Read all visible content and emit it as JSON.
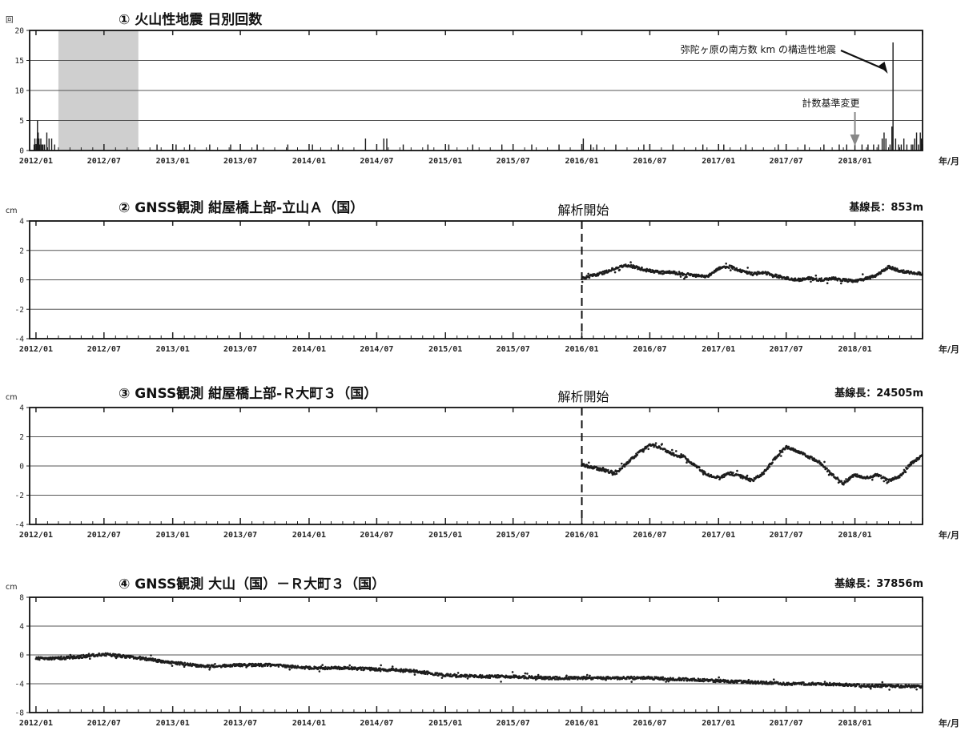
{
  "chart_data": [
    {
      "type": "bar",
      "title": "① 火山性地震 日別回数",
      "ylabel": "回",
      "xunit": "年/月",
      "ylim": [
        0,
        20
      ],
      "yticks": [
        0,
        5,
        10,
        15,
        20
      ],
      "grid": true,
      "x_tick_labels": [
        "2012/01",
        "2012/07",
        "2013/01",
        "2013/07",
        "2014/01",
        "2014/07",
        "2015/01",
        "2015/07",
        "2016/01",
        "2016/07",
        "2017/01",
        "2017/07",
        "2018/01"
      ],
      "shaded_period": {
        "from": "2012/03",
        "to": "2012/10",
        "color": "#cfcfcf"
      },
      "annotations": [
        {
          "text": "弥陀ヶ原の南方数 km の構造性地震",
          "date": "2018/04",
          "value": 14
        },
        {
          "text": "計数基準変更",
          "date": "2018/01",
          "value": 1
        }
      ],
      "series": [
        {
          "x": [
            "2011/12/27",
            "2011/12/29",
            "2012/01/02",
            "2012/01/04",
            "2012/01/05",
            "2012/01/07",
            "2012/01/09",
            "2012/01/11",
            "2012/01/14",
            "2012/01/17",
            "2012/01/20",
            "2012/01/24",
            "2012/01/30",
            "2012/02/05",
            "2012/02/12",
            "2012/02/20",
            "2012/11/20",
            "2013/01/10",
            "2013/02/15",
            "2013/04/10",
            "2013/06/05",
            "2013/08/15",
            "2013/11/05",
            "2014/01/10",
            "2014/03/20",
            "2014/06/01",
            "2014/07/20",
            "2014/07/28",
            "2014/09/10",
            "2014/11/15",
            "2015/01/10",
            "2015/03/15",
            "2015/06/01",
            "2015/08/20",
            "2015/11/01",
            "2016/01/05",
            "2016/01/25",
            "2016/02/10",
            "2016/04/01",
            "2016/06/15",
            "2016/09/01",
            "2016/11/20",
            "2017/01/15",
            "2017/03/15",
            "2017/06/10",
            "2017/08/20",
            "2017/10/10",
            "2017/11/20",
            "2017/12/10",
            "2018/01/20",
            "2018/02/05",
            "2018/02/20",
            "2018/03/05",
            "2018/03/15",
            "2018/03/20",
            "2018/03/25",
            "2018/04/05",
            "2018/04/10",
            "2018/04/13",
            "2018/04/20",
            "2018/04/28",
            "2018/05/05",
            "2018/05/12",
            "2018/05/20",
            "2018/06/01",
            "2018/06/05",
            "2018/06/10",
            "2018/06/15",
            "2018/06/20",
            "2018/06/25",
            "2018/06/28"
          ],
          "values": [
            1,
            2,
            1,
            2,
            5,
            3,
            2,
            1,
            2,
            1,
            1,
            1,
            3,
            2,
            2,
            1,
            1,
            1,
            1,
            1,
            1,
            1,
            1,
            1,
            1,
            2,
            2,
            2,
            1,
            1,
            1,
            1,
            1,
            1,
            1,
            2,
            1,
            1,
            1,
            1,
            1,
            1,
            1,
            1,
            1,
            1,
            1,
            1,
            1,
            1,
            1,
            1,
            1,
            2,
            3,
            2,
            1,
            4,
            18,
            2,
            1,
            1,
            2,
            1,
            1,
            1,
            2,
            3,
            1,
            3,
            2
          ]
        }
      ]
    },
    {
      "type": "scatter",
      "title": "② GNSS観測 紺屋橋上部-立山Ａ（国）",
      "baseline": "基線長：853m",
      "ylabel": "cm",
      "xunit": "年/月",
      "ylim": [
        -4,
        4
      ],
      "yticks": [
        -4,
        -2,
        0,
        2,
        4
      ],
      "grid": true,
      "analysis_start_label": "解析開始",
      "analysis_start": "2016/01",
      "x_tick_labels": [
        "2012/01",
        "2012/07",
        "2013/01",
        "2013/07",
        "2014/01",
        "2014/07",
        "2015/01",
        "2015/07",
        "2016/01",
        "2016/07",
        "2017/01",
        "2017/07",
        "2018/01"
      ],
      "series": [
        {
          "x": [
            "2016/01",
            "2016/02",
            "2016/03",
            "2016/04",
            "2016/05",
            "2016/06",
            "2016/07",
            "2016/08",
            "2016/09",
            "2016/10",
            "2016/11",
            "2016/12",
            "2017/01",
            "2017/02",
            "2017/03",
            "2017/04",
            "2017/05",
            "2017/06",
            "2017/07",
            "2017/08",
            "2017/09",
            "2017/10",
            "2017/11",
            "2017/12",
            "2018/01",
            "2018/02",
            "2018/03",
            "2018/04",
            "2018/05",
            "2018/06",
            "2018/07"
          ],
          "values": [
            0.1,
            0.3,
            0.5,
            0.8,
            1.0,
            0.8,
            0.6,
            0.5,
            0.5,
            0.4,
            0.3,
            0.2,
            0.8,
            0.9,
            0.6,
            0.4,
            0.5,
            0.3,
            0.1,
            0.0,
            0.1,
            0.0,
            0.1,
            0.0,
            -0.1,
            0.1,
            0.3,
            0.9,
            0.6,
            0.5,
            0.4
          ]
        }
      ]
    },
    {
      "type": "scatter",
      "title": "③ GNSS観測 紺屋橋上部-Ｒ大町３（国）",
      "baseline": "基線長：24505m",
      "ylabel": "cm",
      "xunit": "年/月",
      "ylim": [
        -4,
        4
      ],
      "yticks": [
        -4,
        -2,
        0,
        2,
        4
      ],
      "grid": true,
      "analysis_start_label": "解析開始",
      "analysis_start": "2016/01",
      "x_tick_labels": [
        "2012/01",
        "2012/07",
        "2013/01",
        "2013/07",
        "2014/01",
        "2014/07",
        "2015/01",
        "2015/07",
        "2016/01",
        "2016/07",
        "2017/01",
        "2017/07",
        "2018/01"
      ],
      "series": [
        {
          "x": [
            "2016/01",
            "2016/02",
            "2016/03",
            "2016/04",
            "2016/05",
            "2016/06",
            "2016/07",
            "2016/08",
            "2016/09",
            "2016/10",
            "2016/11",
            "2016/12",
            "2017/01",
            "2017/02",
            "2017/03",
            "2017/04",
            "2017/05",
            "2017/06",
            "2017/07",
            "2017/08",
            "2017/09",
            "2017/10",
            "2017/11",
            "2017/12",
            "2018/01",
            "2018/02",
            "2018/03",
            "2018/04",
            "2018/05",
            "2018/06",
            "2018/07"
          ],
          "values": [
            0.1,
            -0.1,
            -0.3,
            -0.5,
            0.2,
            0.9,
            1.5,
            1.2,
            0.8,
            0.6,
            0.0,
            -0.6,
            -0.8,
            -0.5,
            -0.7,
            -1.0,
            -0.5,
            0.5,
            1.3,
            1.0,
            0.6,
            0.2,
            -0.6,
            -1.2,
            -0.6,
            -0.8,
            -0.6,
            -1.0,
            -0.7,
            0.2,
            0.7
          ]
        }
      ]
    },
    {
      "type": "scatter",
      "title": "④ GNSS観測 大山（国）－Ｒ大町３（国）",
      "baseline": "基線長：37856m",
      "ylabel": "cm",
      "xunit": "年/月",
      "ylim": [
        -8,
        8
      ],
      "yticks": [
        -8,
        -4,
        0,
        4,
        8
      ],
      "grid": true,
      "x_tick_labels": [
        "2012/01",
        "2012/07",
        "2013/01",
        "2013/07",
        "2014/01",
        "2014/07",
        "2015/01",
        "2015/07",
        "2016/01",
        "2016/07",
        "2017/01",
        "2017/07",
        "2018/01"
      ],
      "series": [
        {
          "x": [
            "2012/01",
            "2012/04",
            "2012/07",
            "2012/10",
            "2013/01",
            "2013/04",
            "2013/07",
            "2013/10",
            "2014/01",
            "2014/04",
            "2014/07",
            "2014/10",
            "2015/01",
            "2015/04",
            "2015/07",
            "2015/10",
            "2016/01",
            "2016/04",
            "2016/07",
            "2016/10",
            "2017/01",
            "2017/04",
            "2017/07",
            "2017/10",
            "2018/01",
            "2018/04",
            "2018/07"
          ],
          "values": [
            -0.5,
            -0.4,
            0.1,
            -0.4,
            -1.1,
            -1.6,
            -1.4,
            -1.4,
            -1.8,
            -1.8,
            -2.0,
            -2.2,
            -2.8,
            -3.0,
            -3.0,
            -3.2,
            -3.2,
            -3.2,
            -3.2,
            -3.4,
            -3.6,
            -3.8,
            -4.0,
            -4.0,
            -4.2,
            -4.3,
            -4.4
          ]
        }
      ]
    }
  ]
}
